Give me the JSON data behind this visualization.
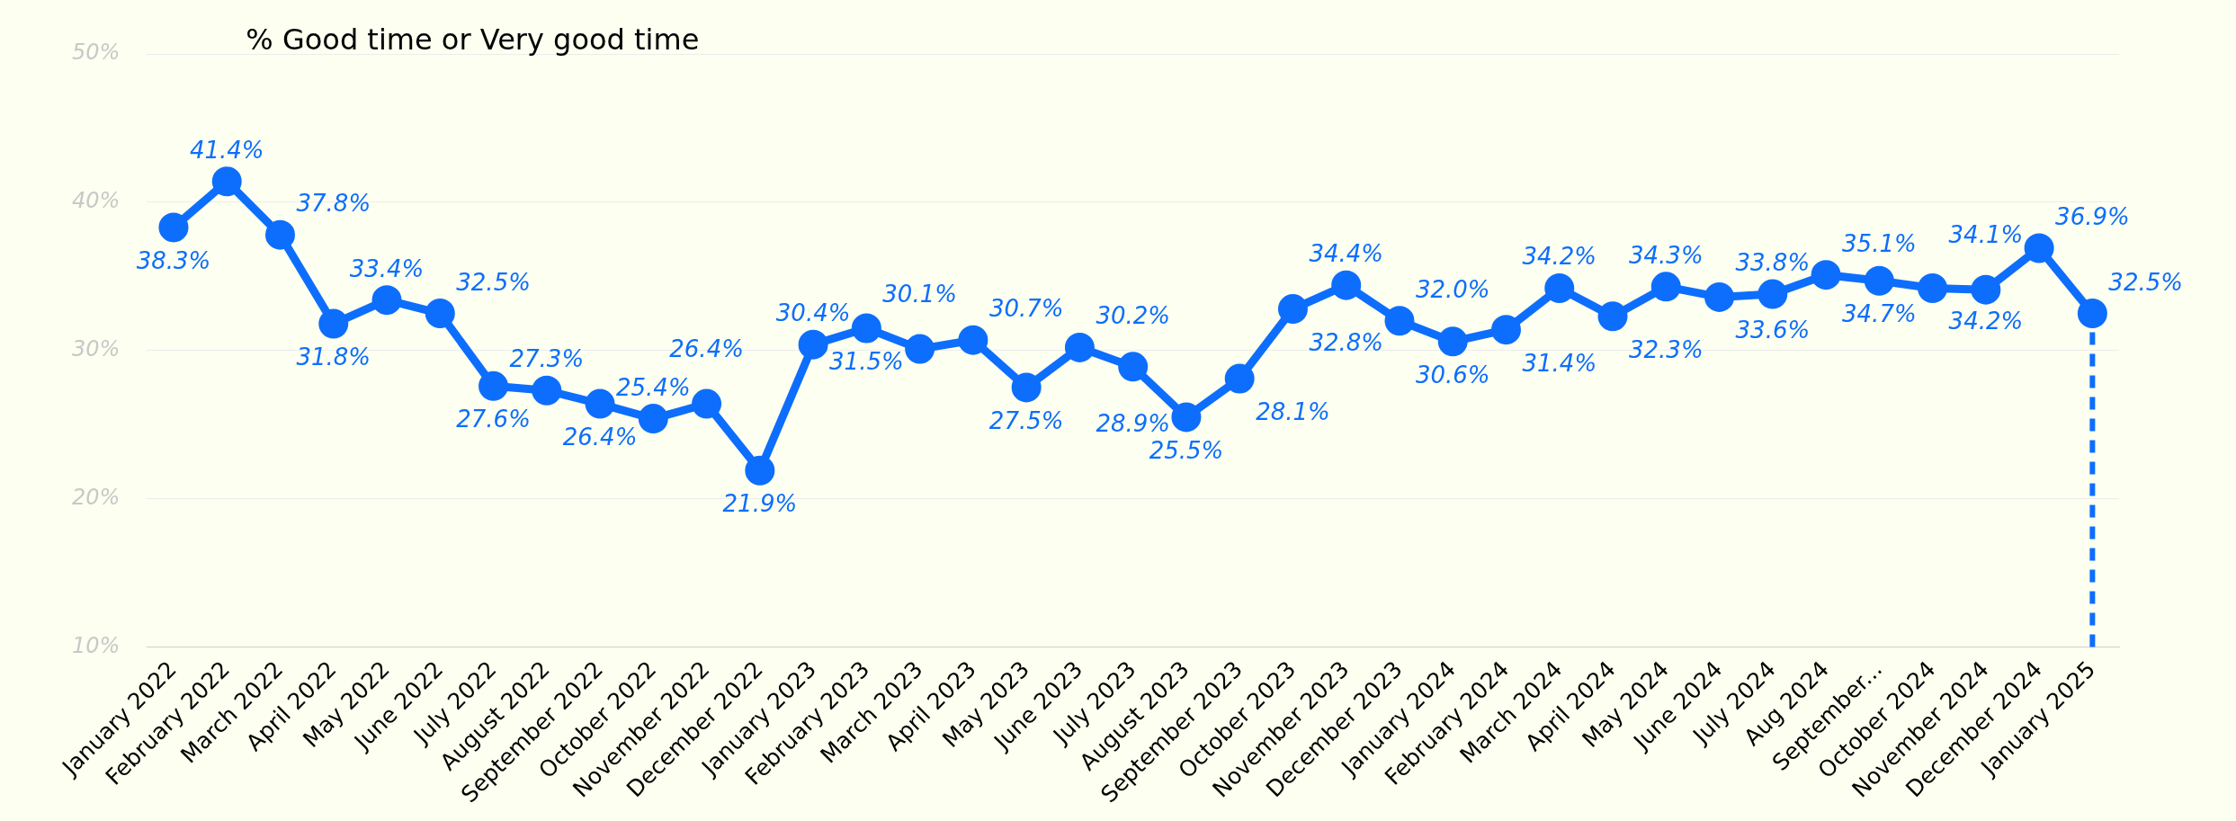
{
  "chart_data": {
    "type": "line",
    "title": "% Good time or Very good time",
    "categories": [
      "January 2022",
      "February 2022",
      "March 2022",
      "April 2022",
      "May 2022",
      "June 2022",
      "July 2022",
      "August 2022",
      "September 2022",
      "October 2022",
      "November 2022",
      "December 2022",
      "January 2023",
      "February 2023",
      "March 2023",
      "April 2023",
      "May 2023",
      "June 2023",
      "July 2023",
      "August 2023",
      "September 2023",
      "October 2023",
      "November 2023",
      "December 2023",
      "January 2024",
      "February 2024",
      "March 2024",
      "April 2024",
      "May 2024",
      "June 2024",
      "July 2024",
      "Aug 2024",
      "September...",
      "October 2024",
      "November 2024",
      "December 2024",
      "January 2025"
    ],
    "series": [
      {
        "color": "#0d6efd",
        "values": [
          38.3,
          41.4,
          37.8,
          31.8,
          33.4,
          32.5,
          27.6,
          27.3,
          26.4,
          25.4,
          26.4,
          21.9,
          30.4,
          31.5,
          30.1,
          30.7,
          27.5,
          30.2,
          28.9,
          25.5,
          28.1,
          32.8,
          34.4,
          32.0,
          30.6,
          31.4,
          34.2,
          32.3,
          34.3,
          33.6,
          33.8,
          35.1,
          34.7,
          34.2,
          34.1,
          36.9,
          32.5
        ],
        "value_labels": [
          "38.3%",
          "41.4%",
          "37.8%",
          "31.8%",
          "33.4%",
          "32.5%",
          "27.6%",
          "27.3%",
          "26.4%",
          "25.4%",
          "26.4%",
          "21.9%",
          "30.4%",
          "31.5%",
          "30.1%",
          "30.7%",
          "27.5%",
          "30.2%",
          "28.9%",
          "25.5%",
          "28.1%",
          "32.8%",
          "34.4%",
          "32.0%",
          "30.6%",
          "31.4%",
          "34.2%",
          "32.3%",
          "34.3%",
          "33.6%",
          "33.8%",
          "35.1%",
          "34.7%",
          "34.2%",
          "34.1%",
          "36.9%",
          "32.5%"
        ]
      }
    ],
    "ylim": [
      10,
      50
    ],
    "yticks": [
      {
        "value": 10,
        "label": "10%"
      },
      {
        "value": 20,
        "label": "20%"
      },
      {
        "value": 30,
        "label": "30%"
      },
      {
        "value": 40,
        "label": "40%"
      },
      {
        "value": 50,
        "label": "50%"
      }
    ],
    "grid": "y",
    "legend": false,
    "marker": "circle",
    "line_style": "solid",
    "ref_lines": [
      {
        "axis": "x",
        "value": "January 2025",
        "color": "#0d6efd",
        "line_style": "dashed"
      }
    ]
  }
}
